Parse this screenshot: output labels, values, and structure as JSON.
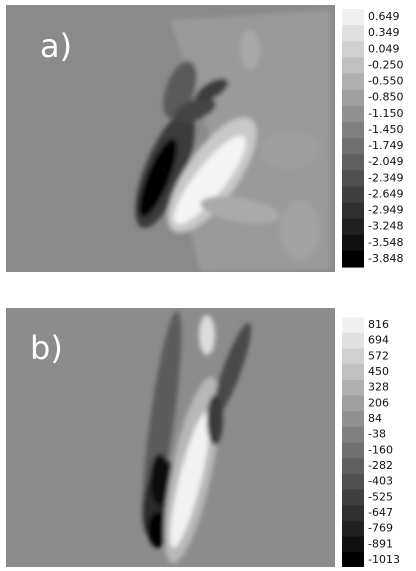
{
  "panels": [
    {
      "label": "a)",
      "levels": [
        "0.649",
        "0.349",
        "0.049",
        "-0.250",
        "-0.550",
        "-0.850",
        "-1.150",
        "-1.450",
        "-1.749",
        "-2.049",
        "-2.349",
        "-2.649",
        "-2.949",
        "-3.248",
        "-3.548",
        "-3.848"
      ]
    },
    {
      "label": "b)",
      "levels": [
        "816",
        "694",
        "572",
        "450",
        "328",
        "206",
        "84",
        "-38",
        "-160",
        "-282",
        "-403",
        "-525",
        "-647",
        "-769",
        "-891",
        "-1013"
      ]
    }
  ]
}
